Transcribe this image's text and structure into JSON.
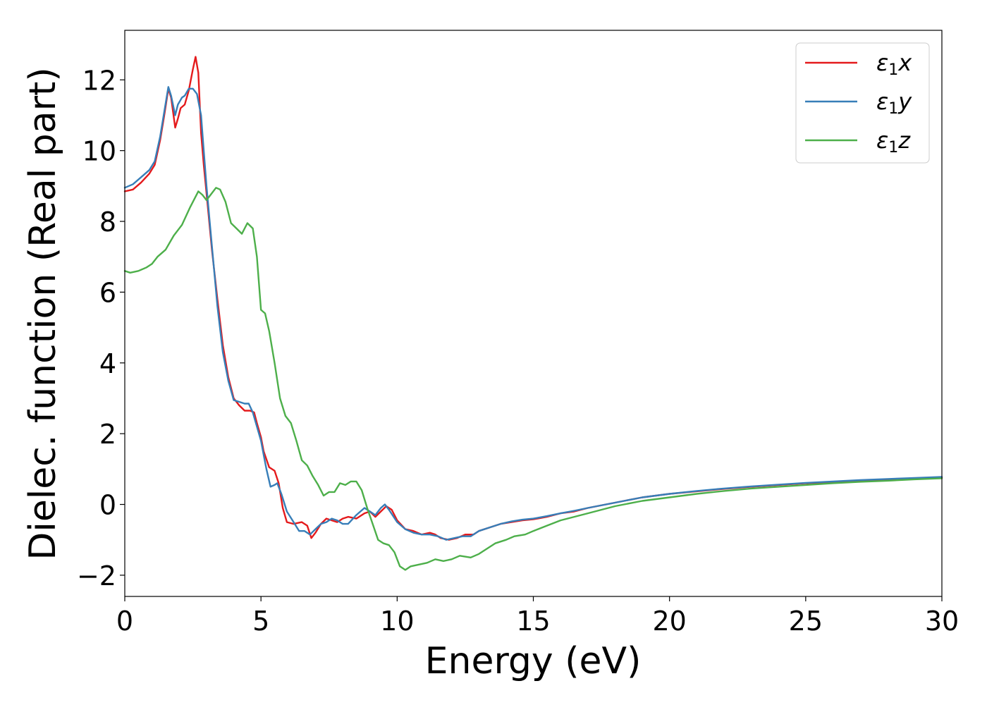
{
  "chart_data": {
    "type": "line",
    "title": "",
    "xlabel": "Energy (eV)",
    "ylabel": "Dielec. function (Real part)",
    "xlim": [
      0,
      30
    ],
    "ylim": [
      -2.6,
      13.4
    ],
    "xticks": [
      0,
      5,
      10,
      15,
      20,
      25,
      30
    ],
    "xtick_labels": [
      "0",
      "5",
      "10",
      "15",
      "20",
      "25",
      "30"
    ],
    "yticks": [
      -2,
      0,
      2,
      4,
      6,
      8,
      10,
      12
    ],
    "ytick_labels": [
      "−2",
      "0",
      "2",
      "4",
      "6",
      "8",
      "10",
      "12"
    ],
    "grid": false,
    "legend_position": "top-right",
    "series": [
      {
        "name": "ε",
        "sub": "1",
        "axis": "x",
        "color": "#e41a1c",
        "points": [
          [
            0,
            8.85
          ],
          [
            0.3,
            8.9
          ],
          [
            0.6,
            9.1
          ],
          [
            0.9,
            9.35
          ],
          [
            1.1,
            9.6
          ],
          [
            1.3,
            10.3
          ],
          [
            1.45,
            11.0
          ],
          [
            1.6,
            11.75
          ],
          [
            1.7,
            11.5
          ],
          [
            1.85,
            10.65
          ],
          [
            1.95,
            10.9
          ],
          [
            2.05,
            11.2
          ],
          [
            2.2,
            11.3
          ],
          [
            2.35,
            11.7
          ],
          [
            2.5,
            12.3
          ],
          [
            2.6,
            12.65
          ],
          [
            2.7,
            12.2
          ],
          [
            2.8,
            10.5
          ],
          [
            2.9,
            9.6
          ],
          [
            3.0,
            8.8
          ],
          [
            3.2,
            7.2
          ],
          [
            3.4,
            5.8
          ],
          [
            3.6,
            4.5
          ],
          [
            3.8,
            3.6
          ],
          [
            4.0,
            3.0
          ],
          [
            4.2,
            2.8
          ],
          [
            4.4,
            2.65
          ],
          [
            4.6,
            2.65
          ],
          [
            4.75,
            2.6
          ],
          [
            4.85,
            2.3
          ],
          [
            5.0,
            1.9
          ],
          [
            5.1,
            1.5
          ],
          [
            5.3,
            1.05
          ],
          [
            5.5,
            0.95
          ],
          [
            5.65,
            0.6
          ],
          [
            5.8,
            -0.1
          ],
          [
            5.95,
            -0.5
          ],
          [
            6.2,
            -0.55
          ],
          [
            6.5,
            -0.5
          ],
          [
            6.7,
            -0.6
          ],
          [
            6.85,
            -0.95
          ],
          [
            7.0,
            -0.8
          ],
          [
            7.2,
            -0.55
          ],
          [
            7.4,
            -0.4
          ],
          [
            7.6,
            -0.45
          ],
          [
            7.8,
            -0.5
          ],
          [
            8.0,
            -0.4
          ],
          [
            8.2,
            -0.35
          ],
          [
            8.5,
            -0.4
          ],
          [
            8.8,
            -0.25
          ],
          [
            9.0,
            -0.2
          ],
          [
            9.2,
            -0.35
          ],
          [
            9.4,
            -0.2
          ],
          [
            9.6,
            -0.05
          ],
          [
            9.8,
            -0.15
          ],
          [
            10.0,
            -0.45
          ],
          [
            10.3,
            -0.7
          ],
          [
            10.6,
            -0.75
          ],
          [
            10.9,
            -0.85
          ],
          [
            11.2,
            -0.8
          ],
          [
            11.4,
            -0.85
          ],
          [
            11.6,
            -0.95
          ],
          [
            11.9,
            -1.0
          ],
          [
            12.2,
            -0.95
          ],
          [
            12.5,
            -0.85
          ],
          [
            12.8,
            -0.85
          ],
          [
            13.0,
            -0.75
          ],
          [
            13.4,
            -0.65
          ],
          [
            13.8,
            -0.55
          ],
          [
            14.2,
            -0.5
          ],
          [
            14.6,
            -0.45
          ],
          [
            15.0,
            -0.42
          ],
          [
            15.5,
            -0.35
          ],
          [
            16.0,
            -0.25
          ],
          [
            16.5,
            -0.2
          ],
          [
            17.0,
            -0.1
          ],
          [
            18.0,
            0.05
          ],
          [
            19.0,
            0.2
          ],
          [
            20.0,
            0.3
          ],
          [
            21.0,
            0.37
          ],
          [
            22.0,
            0.44
          ],
          [
            23.0,
            0.5
          ],
          [
            24.0,
            0.55
          ],
          [
            25.0,
            0.6
          ],
          [
            26.0,
            0.63
          ],
          [
            27.0,
            0.67
          ],
          [
            28.0,
            0.7
          ],
          [
            29.0,
            0.73
          ],
          [
            30.0,
            0.76
          ]
        ]
      },
      {
        "name": "ε",
        "sub": "1",
        "axis": "y",
        "color": "#377eb8",
        "points": [
          [
            0,
            8.95
          ],
          [
            0.3,
            9.05
          ],
          [
            0.6,
            9.25
          ],
          [
            0.9,
            9.45
          ],
          [
            1.1,
            9.7
          ],
          [
            1.3,
            10.4
          ],
          [
            1.45,
            11.1
          ],
          [
            1.6,
            11.8
          ],
          [
            1.7,
            11.55
          ],
          [
            1.85,
            11.0
          ],
          [
            1.95,
            11.3
          ],
          [
            2.1,
            11.5
          ],
          [
            2.2,
            11.55
          ],
          [
            2.35,
            11.75
          ],
          [
            2.5,
            11.75
          ],
          [
            2.65,
            11.6
          ],
          [
            2.8,
            11.0
          ],
          [
            2.9,
            10.0
          ],
          [
            3.0,
            9.0
          ],
          [
            3.2,
            7.3
          ],
          [
            3.4,
            5.6
          ],
          [
            3.6,
            4.3
          ],
          [
            3.8,
            3.5
          ],
          [
            4.0,
            2.95
          ],
          [
            4.2,
            2.9
          ],
          [
            4.4,
            2.85
          ],
          [
            4.55,
            2.85
          ],
          [
            4.7,
            2.6
          ],
          [
            4.85,
            2.2
          ],
          [
            5.0,
            1.8
          ],
          [
            5.1,
            1.4
          ],
          [
            5.2,
            1.0
          ],
          [
            5.35,
            0.5
          ],
          [
            5.5,
            0.55
          ],
          [
            5.6,
            0.6
          ],
          [
            5.75,
            0.3
          ],
          [
            5.95,
            -0.2
          ],
          [
            6.2,
            -0.5
          ],
          [
            6.4,
            -0.75
          ],
          [
            6.6,
            -0.75
          ],
          [
            6.8,
            -0.85
          ],
          [
            7.0,
            -0.7
          ],
          [
            7.2,
            -0.55
          ],
          [
            7.4,
            -0.5
          ],
          [
            7.6,
            -0.4
          ],
          [
            7.8,
            -0.45
          ],
          [
            8.0,
            -0.55
          ],
          [
            8.2,
            -0.55
          ],
          [
            8.5,
            -0.3
          ],
          [
            8.8,
            -0.1
          ],
          [
            9.0,
            -0.2
          ],
          [
            9.2,
            -0.3
          ],
          [
            9.4,
            -0.1
          ],
          [
            9.55,
            0.0
          ],
          [
            9.7,
            -0.15
          ],
          [
            10.0,
            -0.5
          ],
          [
            10.3,
            -0.7
          ],
          [
            10.6,
            -0.8
          ],
          [
            10.9,
            -0.85
          ],
          [
            11.2,
            -0.85
          ],
          [
            11.5,
            -0.9
          ],
          [
            11.8,
            -1.0
          ],
          [
            12.1,
            -0.95
          ],
          [
            12.4,
            -0.9
          ],
          [
            12.7,
            -0.9
          ],
          [
            13.0,
            -0.75
          ],
          [
            13.4,
            -0.65
          ],
          [
            13.8,
            -0.55
          ],
          [
            14.2,
            -0.48
          ],
          [
            14.6,
            -0.43
          ],
          [
            15.0,
            -0.4
          ],
          [
            15.5,
            -0.33
          ],
          [
            16.0,
            -0.25
          ],
          [
            16.5,
            -0.18
          ],
          [
            17.0,
            -0.1
          ],
          [
            18.0,
            0.05
          ],
          [
            19.0,
            0.2
          ],
          [
            20.0,
            0.3
          ],
          [
            21.0,
            0.38
          ],
          [
            22.0,
            0.45
          ],
          [
            23.0,
            0.51
          ],
          [
            24.0,
            0.56
          ],
          [
            25.0,
            0.61
          ],
          [
            26.0,
            0.65
          ],
          [
            27.0,
            0.69
          ],
          [
            28.0,
            0.72
          ],
          [
            29.0,
            0.75
          ],
          [
            30.0,
            0.78
          ]
        ]
      },
      {
        "name": "ε",
        "sub": "1",
        "axis": "z",
        "color": "#4daf4a",
        "points": [
          [
            0,
            6.6
          ],
          [
            0.2,
            6.55
          ],
          [
            0.5,
            6.6
          ],
          [
            0.8,
            6.7
          ],
          [
            1.0,
            6.8
          ],
          [
            1.2,
            7.0
          ],
          [
            1.5,
            7.2
          ],
          [
            1.8,
            7.6
          ],
          [
            2.1,
            7.9
          ],
          [
            2.4,
            8.4
          ],
          [
            2.7,
            8.85
          ],
          [
            2.85,
            8.75
          ],
          [
            3.0,
            8.6
          ],
          [
            3.15,
            8.75
          ],
          [
            3.35,
            8.95
          ],
          [
            3.5,
            8.9
          ],
          [
            3.7,
            8.55
          ],
          [
            3.9,
            7.95
          ],
          [
            4.1,
            7.8
          ],
          [
            4.3,
            7.65
          ],
          [
            4.5,
            7.95
          ],
          [
            4.7,
            7.8
          ],
          [
            4.85,
            7.0
          ],
          [
            5.0,
            5.5
          ],
          [
            5.15,
            5.4
          ],
          [
            5.3,
            4.9
          ],
          [
            5.5,
            4.0
          ],
          [
            5.7,
            3.0
          ],
          [
            5.9,
            2.5
          ],
          [
            6.1,
            2.3
          ],
          [
            6.3,
            1.8
          ],
          [
            6.5,
            1.25
          ],
          [
            6.7,
            1.1
          ],
          [
            6.9,
            0.8
          ],
          [
            7.1,
            0.55
          ],
          [
            7.3,
            0.25
          ],
          [
            7.5,
            0.35
          ],
          [
            7.7,
            0.35
          ],
          [
            7.9,
            0.6
          ],
          [
            8.1,
            0.55
          ],
          [
            8.3,
            0.65
          ],
          [
            8.5,
            0.65
          ],
          [
            8.7,
            0.4
          ],
          [
            8.9,
            -0.1
          ],
          [
            9.1,
            -0.55
          ],
          [
            9.3,
            -1.0
          ],
          [
            9.5,
            -1.1
          ],
          [
            9.7,
            -1.15
          ],
          [
            9.9,
            -1.35
          ],
          [
            10.1,
            -1.75
          ],
          [
            10.3,
            -1.85
          ],
          [
            10.5,
            -1.75
          ],
          [
            10.8,
            -1.7
          ],
          [
            11.1,
            -1.65
          ],
          [
            11.4,
            -1.55
          ],
          [
            11.7,
            -1.6
          ],
          [
            12.0,
            -1.55
          ],
          [
            12.3,
            -1.45
          ],
          [
            12.7,
            -1.5
          ],
          [
            13.0,
            -1.4
          ],
          [
            13.3,
            -1.25
          ],
          [
            13.6,
            -1.1
          ],
          [
            14.0,
            -1.0
          ],
          [
            14.3,
            -0.9
          ],
          [
            14.7,
            -0.85
          ],
          [
            15.0,
            -0.75
          ],
          [
            15.5,
            -0.6
          ],
          [
            16.0,
            -0.45
          ],
          [
            16.5,
            -0.35
          ],
          [
            17.0,
            -0.25
          ],
          [
            18.0,
            -0.05
          ],
          [
            19.0,
            0.1
          ],
          [
            20.0,
            0.2
          ],
          [
            21.0,
            0.3
          ],
          [
            22.0,
            0.38
          ],
          [
            23.0,
            0.45
          ],
          [
            24.0,
            0.5
          ],
          [
            25.0,
            0.55
          ],
          [
            26.0,
            0.6
          ],
          [
            27.0,
            0.64
          ],
          [
            28.0,
            0.67
          ],
          [
            29.0,
            0.71
          ],
          [
            30.0,
            0.74
          ]
        ]
      }
    ]
  }
}
